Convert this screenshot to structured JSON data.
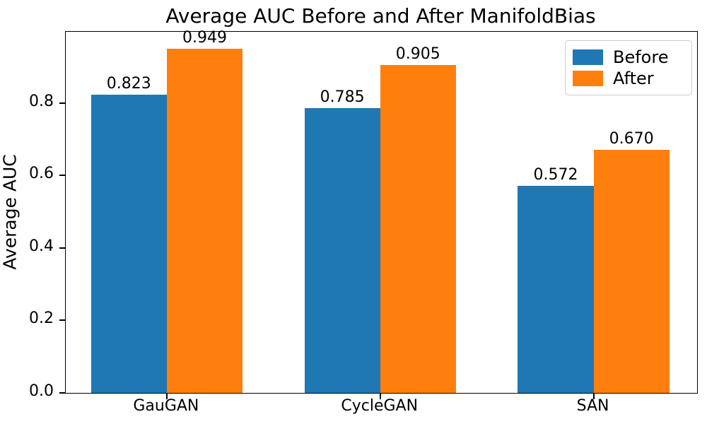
{
  "figure": {
    "title": "Average AUC Before and After ManifoldBias",
    "ylabel": "Average AUC"
  },
  "chart_data": {
    "type": "bar",
    "title": "Average AUC Before and After ManifoldBias",
    "xlabel": "",
    "ylabel": "Average AUC",
    "categories": [
      "GauGAN",
      "CycleGAN",
      "SAN"
    ],
    "series": [
      {
        "name": "Before",
        "color": "#1f77b4",
        "values": [
          0.823,
          0.785,
          0.572
        ],
        "value_labels": [
          "0.823",
          "0.785",
          "0.572"
        ]
      },
      {
        "name": "After",
        "color": "#ff7f0e",
        "values": [
          0.949,
          0.905,
          0.67
        ],
        "value_labels": [
          "0.949",
          "0.905",
          "0.670"
        ]
      }
    ],
    "yticks": [
      {
        "value": 0.0,
        "label": "0.0"
      },
      {
        "value": 0.2,
        "label": "0.2"
      },
      {
        "value": 0.4,
        "label": "0.4"
      },
      {
        "value": 0.6,
        "label": "0.6"
      },
      {
        "value": 0.8,
        "label": "0.8"
      }
    ],
    "ylim": [
      0,
      0.9965
    ],
    "grid": false,
    "legend_position": "upper right",
    "bar_value_labels": true
  },
  "colors": {
    "axis": "#000000",
    "background": "#ffffff",
    "legend_border": "#cccccc",
    "series_before": "#1f77b4",
    "series_after": "#ff7f0e"
  }
}
